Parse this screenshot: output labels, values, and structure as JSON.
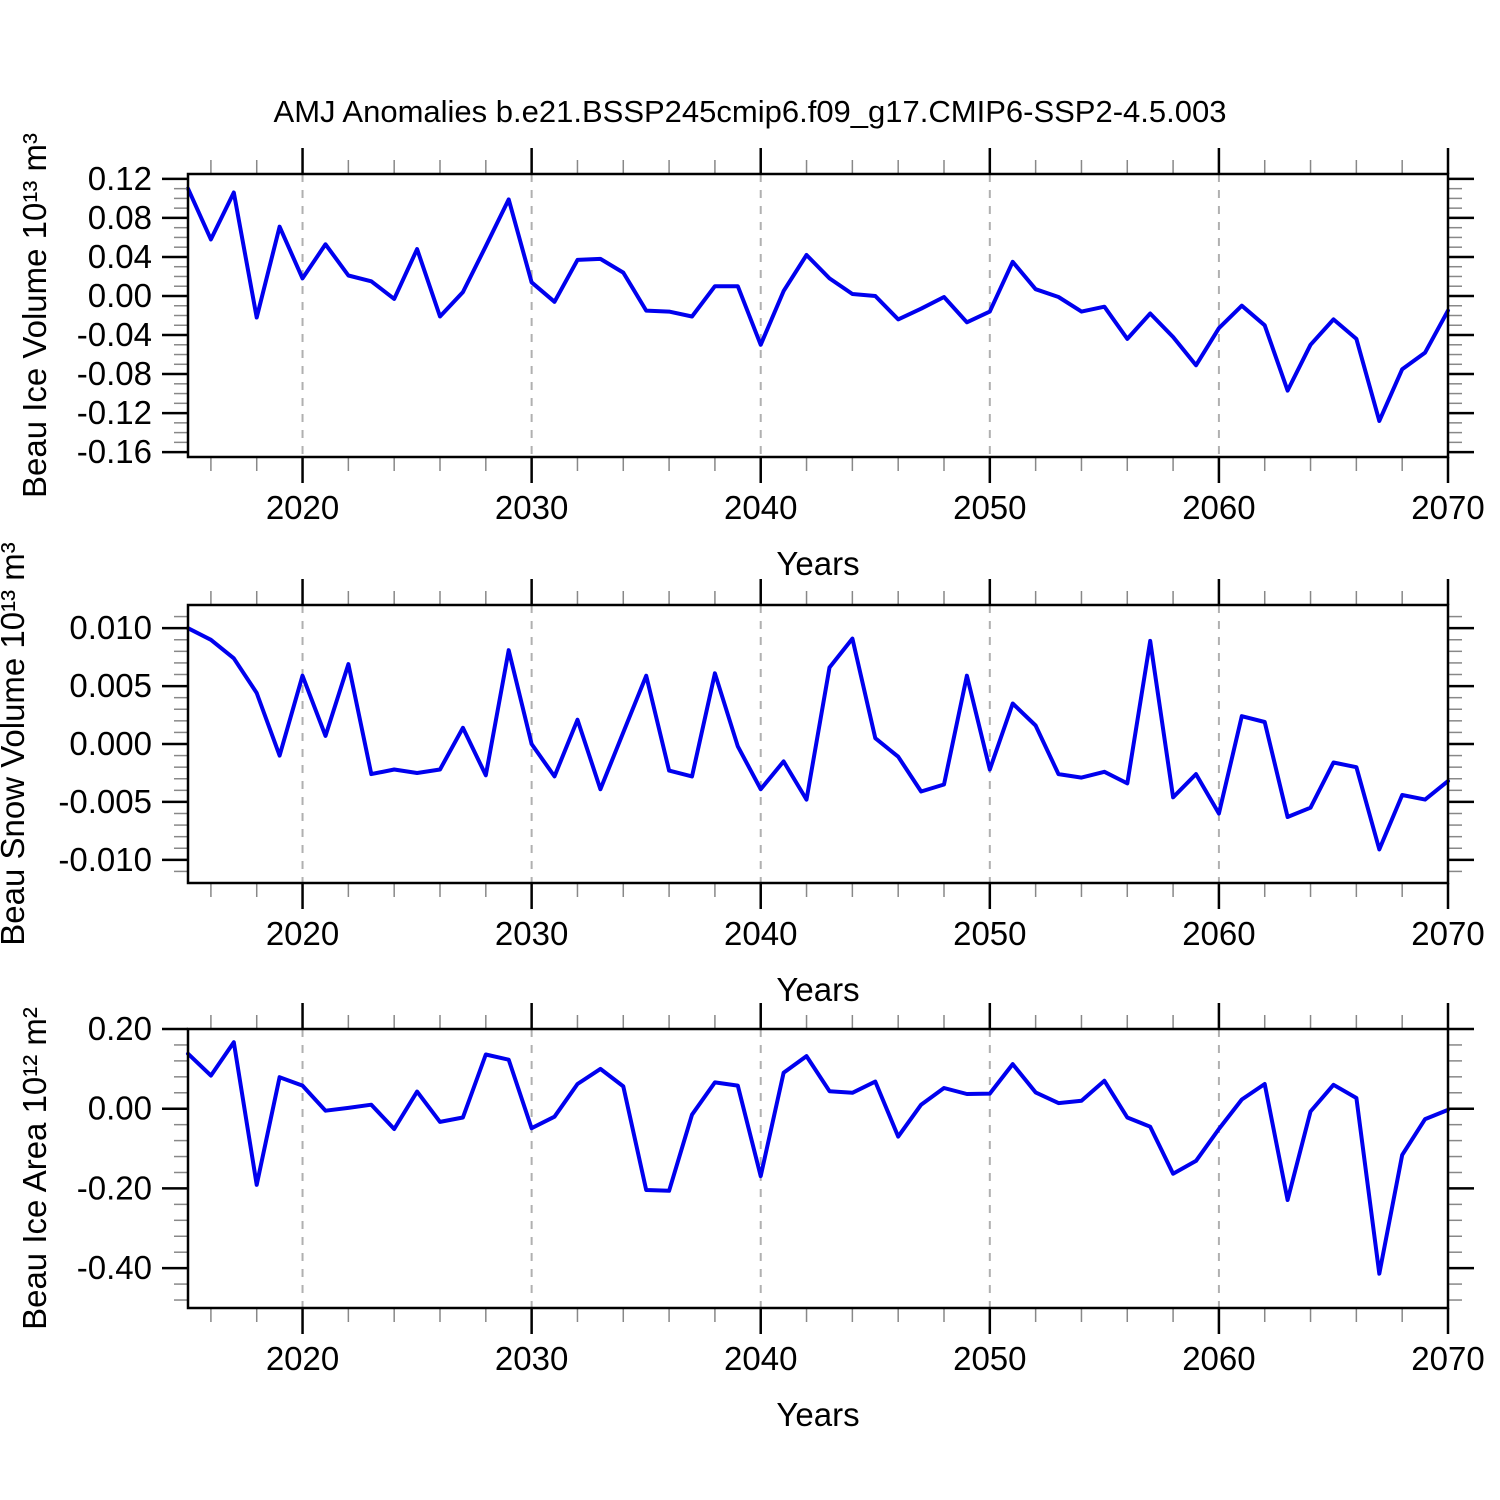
{
  "figure": {
    "title": "AMJ Anomalies b.e21.BSSP245cmip6.f09_g17.CMIP6-SSP2-4.5.003",
    "line_color": "#0000ee",
    "grid_color": "#b0b0b0",
    "axis_color": "#000000",
    "minor_tick_color": "#888888",
    "background": "#ffffff"
  },
  "years": [
    2015,
    2016,
    2017,
    2018,
    2019,
    2020,
    2021,
    2022,
    2023,
    2024,
    2025,
    2026,
    2027,
    2028,
    2029,
    2030,
    2031,
    2032,
    2033,
    2034,
    2035,
    2036,
    2037,
    2038,
    2039,
    2040,
    2041,
    2042,
    2043,
    2044,
    2045,
    2046,
    2047,
    2048,
    2049,
    2050,
    2051,
    2052,
    2053,
    2054,
    2055,
    2056,
    2057,
    2058,
    2059,
    2060,
    2061,
    2062,
    2063,
    2064,
    2065,
    2066,
    2067,
    2068,
    2069,
    2070
  ],
  "chart_data": [
    {
      "type": "line",
      "name": "beau-ice-volume",
      "ylabel": "Beau Ice Volume 10¹³ m³",
      "xlabel": "Years",
      "x_start": 2015,
      "x_end": 2070,
      "x_major_ticks": [
        2020,
        2030,
        2040,
        2050,
        2060,
        2070
      ],
      "x_tick_labels": [
        "2020",
        "2030",
        "2040",
        "2050",
        "2060",
        "2070"
      ],
      "x_minor_step": 2,
      "grid_years": [
        2020,
        2030,
        2040,
        2050,
        2060
      ],
      "ylim": [
        -0.165,
        0.125
      ],
      "yticks": [
        0.12,
        0.08,
        0.04,
        0.0,
        -0.04,
        -0.08,
        -0.12,
        -0.16
      ],
      "ytick_labels": [
        "0.12",
        "0.08",
        "0.04",
        "0.00",
        "-0.04",
        "-0.08",
        "-0.12",
        "-0.16"
      ],
      "ytick_minor_step": 0.01,
      "series": [
        {
          "name": "ice volume anomaly",
          "values": [
            0.11,
            0.058,
            0.106,
            -0.022,
            0.071,
            0.018,
            0.053,
            0.021,
            0.015,
            -0.003,
            0.048,
            -0.021,
            0.004,
            0.051,
            0.099,
            0.014,
            -0.006,
            0.037,
            0.038,
            0.024,
            -0.015,
            -0.016,
            -0.021,
            0.01,
            0.01,
            -0.05,
            0.005,
            0.042,
            0.018,
            0.002,
            0.0,
            -0.024,
            -0.013,
            -0.001,
            -0.027,
            -0.016,
            0.035,
            0.007,
            -0.001,
            -0.016,
            -0.011,
            -0.044,
            -0.018,
            -0.042,
            -0.071,
            -0.033,
            -0.01,
            -0.03,
            -0.097,
            -0.05,
            -0.024,
            -0.044,
            -0.128,
            -0.075,
            -0.058,
            -0.015
          ]
        }
      ]
    },
    {
      "type": "line",
      "name": "beau-snow-volume",
      "ylabel": "Beau Snow Volume 10¹³ m³",
      "xlabel": "Years",
      "x_start": 2015,
      "x_end": 2070,
      "x_major_ticks": [
        2020,
        2030,
        2040,
        2050,
        2060,
        2070
      ],
      "x_tick_labels": [
        "2020",
        "2030",
        "2040",
        "2050",
        "2060",
        "2070"
      ],
      "x_minor_step": 2,
      "grid_years": [
        2020,
        2030,
        2040,
        2050,
        2060
      ],
      "ylim": [
        -0.012,
        0.012
      ],
      "yticks": [
        0.01,
        0.005,
        0.0,
        -0.005,
        -0.01
      ],
      "ytick_labels": [
        "0.010",
        "0.005",
        "0.000",
        "-0.005",
        "-0.010"
      ],
      "ytick_minor_step": 0.001,
      "series": [
        {
          "name": "snow volume anomaly",
          "values": [
            0.01,
            0.009,
            0.0074,
            0.0044,
            -0.001,
            0.0059,
            0.0007,
            0.0069,
            -0.0026,
            -0.0022,
            -0.0025,
            -0.0022,
            0.0014,
            -0.0027,
            0.0081,
            0.0,
            -0.0028,
            0.0021,
            -0.0039,
            0.001,
            0.0059,
            -0.0023,
            -0.0028,
            0.0061,
            -0.0002,
            -0.0039,
            -0.0015,
            -0.0048,
            0.0066,
            0.0091,
            0.0005,
            -0.0011,
            -0.0041,
            -0.0035,
            0.0059,
            -0.0022,
            0.0035,
            0.0016,
            -0.0026,
            -0.0029,
            -0.0024,
            -0.0034,
            0.0089,
            -0.0046,
            -0.0026,
            -0.006,
            0.0024,
            0.0019,
            -0.0063,
            -0.0055,
            -0.0016,
            -0.002,
            -0.0091,
            -0.0044,
            -0.0048,
            -0.0032
          ]
        }
      ]
    },
    {
      "type": "line",
      "name": "beau-ice-area",
      "ylabel": "Beau Ice Area 10¹² m²",
      "xlabel": "Years",
      "x_start": 2015,
      "x_end": 2070,
      "x_major_ticks": [
        2020,
        2030,
        2040,
        2050,
        2060,
        2070
      ],
      "x_tick_labels": [
        "2020",
        "2030",
        "2040",
        "2050",
        "2060",
        "2070"
      ],
      "x_minor_step": 2,
      "grid_years": [
        2020,
        2030,
        2040,
        2050,
        2060
      ],
      "ylim": [
        -0.5,
        0.2
      ],
      "yticks": [
        0.2,
        0.0,
        -0.2,
        -0.4
      ],
      "ytick_labels": [
        "0.20",
        "0.00",
        "-0.20",
        "-0.40"
      ],
      "ytick_minor_step": 0.04,
      "series": [
        {
          "name": "ice area anomaly",
          "values": [
            0.138,
            0.083,
            0.167,
            -0.191,
            0.079,
            0.058,
            -0.005,
            0.002,
            0.01,
            -0.051,
            0.043,
            -0.033,
            -0.022,
            0.136,
            0.123,
            -0.049,
            -0.02,
            0.062,
            0.1,
            0.056,
            -0.204,
            -0.206,
            -0.015,
            0.066,
            0.058,
            -0.169,
            0.09,
            0.132,
            0.044,
            0.04,
            0.068,
            -0.07,
            0.01,
            0.052,
            0.037,
            0.038,
            0.112,
            0.041,
            0.014,
            0.02,
            0.07,
            -0.022,
            -0.045,
            -0.163,
            -0.131,
            -0.051,
            0.023,
            0.062,
            -0.229,
            -0.007,
            0.06,
            0.027,
            -0.414,
            -0.116,
            -0.026,
            -0.003
          ]
        }
      ]
    }
  ]
}
